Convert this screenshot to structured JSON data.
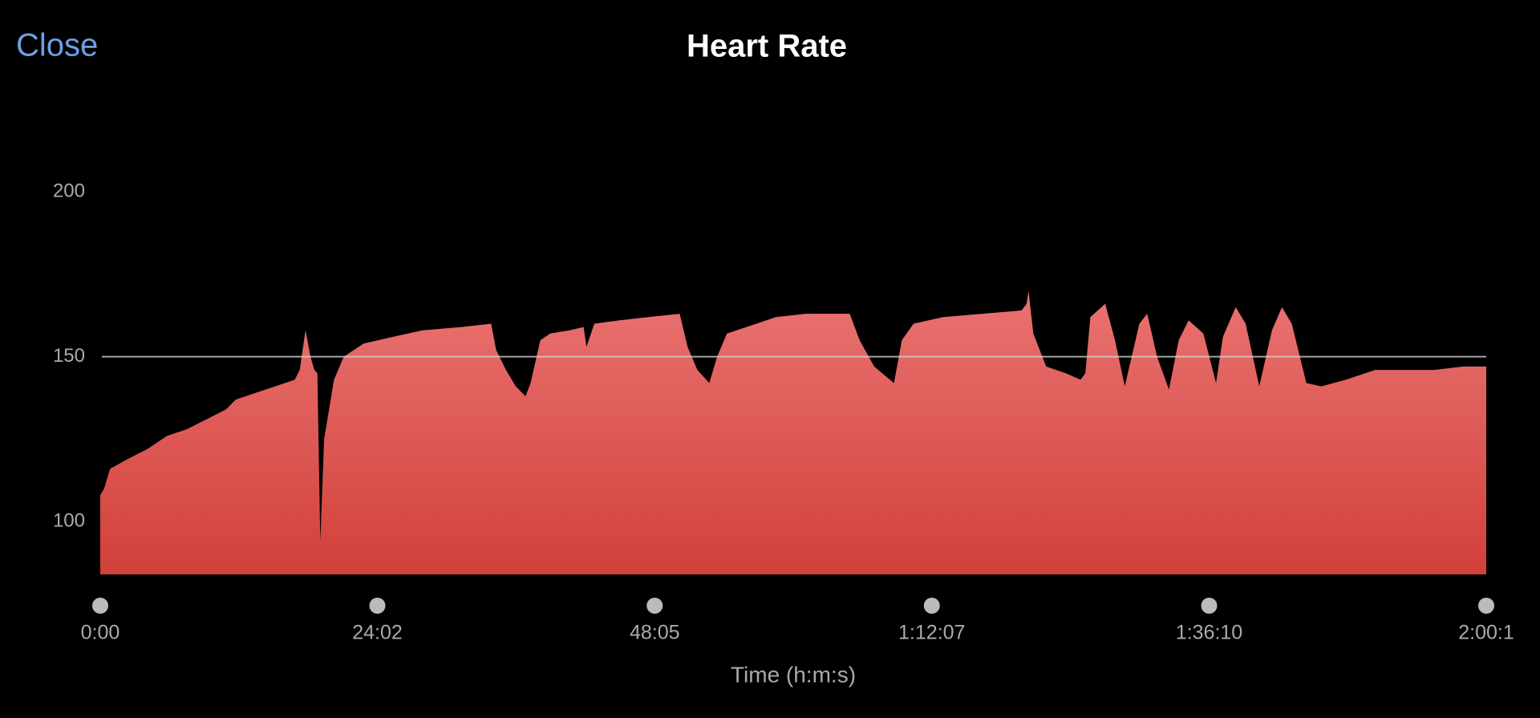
{
  "close_button": "Close",
  "chart_data": {
    "type": "area",
    "title": "Heart Rate",
    "x_label": "Time (h:m:s)",
    "color_top": "#e97372",
    "color_bottom": "#d2403a",
    "xlim": [
      0,
      7212
    ],
    "ylim": [
      84,
      200
    ],
    "yticks": [
      100,
      150,
      200
    ],
    "xticks": [
      {
        "value": 0,
        "label": "0:00"
      },
      {
        "value": 1442,
        "label": "24:02"
      },
      {
        "value": 2885,
        "label": "48:05"
      },
      {
        "value": 4327,
        "label": "1:12:07"
      },
      {
        "value": 5770,
        "label": "1:36:10"
      },
      {
        "value": 7212,
        "label": "2:00:1"
      }
    ],
    "reference_line": 150,
    "x": [
      0,
      20,
      51,
      143,
      245,
      348,
      450,
      552,
      654,
      705,
      808,
      910,
      1012,
      1038,
      1068,
      1094,
      1114,
      1130,
      1145,
      1165,
      1216,
      1267,
      1370,
      1523,
      1677,
      1881,
      2034,
      2060,
      2111,
      2162,
      2213,
      2239,
      2290,
      2341,
      2443,
      2515,
      2530,
      2571,
      2699,
      2852,
      3015,
      3056,
      3107,
      3169,
      3210,
      3261,
      3363,
      3516,
      3670,
      3900,
      3951,
      4027,
      4130,
      4171,
      4232,
      4385,
      4590,
      4794,
      4820,
      4830,
      4855,
      4922,
      5024,
      5101,
      5126,
      5152,
      5229,
      5280,
      5331,
      5407,
      5448,
      5499,
      5561,
      5612,
      5663,
      5740,
      5806,
      5842,
      5908,
      5960,
      6031,
      6097,
      6149,
      6200,
      6276,
      6353,
      6481,
      6634,
      6787,
      6940,
      7093,
      7212
    ],
    "values": [
      108,
      110,
      116,
      119,
      122,
      126,
      128,
      131,
      134,
      137,
      139,
      141,
      143,
      146,
      158,
      150,
      146,
      145,
      94,
      125,
      143,
      150,
      154,
      156,
      158,
      159,
      160,
      152,
      146,
      141,
      138,
      142,
      155,
      157,
      158,
      159,
      153,
      160,
      161,
      162,
      163,
      153,
      146,
      142,
      150,
      157,
      159,
      162,
      163,
      163,
      155,
      147,
      142,
      155,
      160,
      162,
      163,
      164,
      166,
      170,
      157,
      147,
      145,
      143,
      145,
      162,
      166,
      155,
      141,
      160,
      163,
      150,
      140,
      155,
      161,
      157,
      142,
      156,
      165,
      160,
      141,
      158,
      165,
      160,
      142,
      141,
      143,
      146,
      146,
      146,
      147,
      147
    ]
  }
}
